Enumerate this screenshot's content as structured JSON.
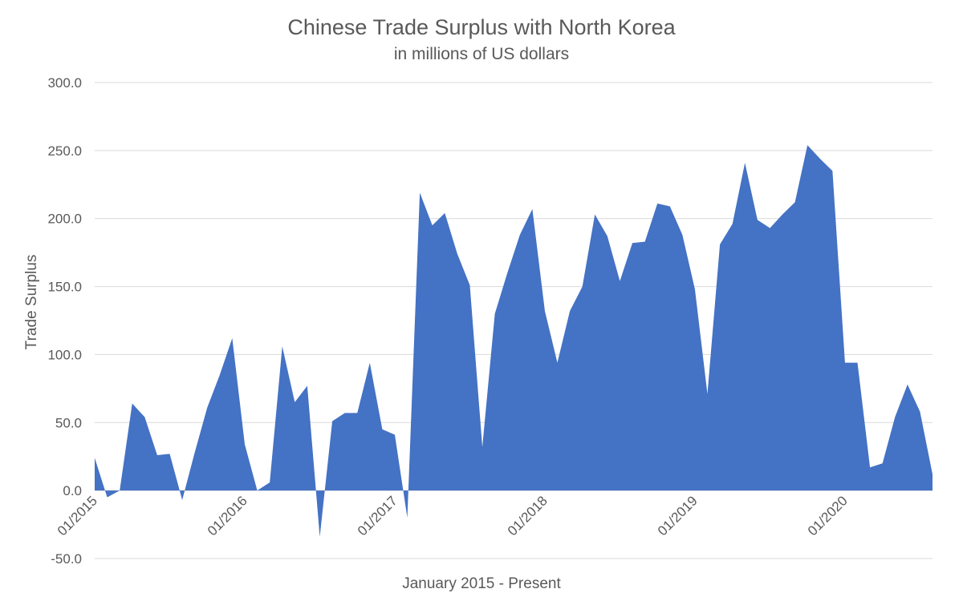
{
  "chart_data": {
    "type": "area",
    "title": "Chinese Trade Surplus with North Korea",
    "subtitle": "in millions of US dollars",
    "xlabel": "January 2015 - Present",
    "ylabel": "Trade Surplus",
    "ylim": [
      -50,
      300
    ],
    "y_ticks": [
      -50,
      0,
      50,
      100,
      150,
      200,
      250,
      300
    ],
    "y_tick_labels": [
      "-50.0",
      "0.0",
      "50.0",
      "100.0",
      "150.0",
      "200.0",
      "250.0",
      "300.0"
    ],
    "x_tick_labels": [
      "01/2015",
      "01/2016",
      "01/2017",
      "01/2018",
      "01/2019",
      "01/2020"
    ],
    "x_tick_months": [
      0,
      12,
      24,
      36,
      48,
      60
    ],
    "x_start": "01/2015",
    "grid": true,
    "legend": "none",
    "color": "#4472C4",
    "series": [
      {
        "values": [
          24,
          -5,
          0,
          64,
          54,
          26,
          27,
          -7,
          28,
          61,
          85,
          112,
          34,
          0,
          6,
          106,
          65,
          77,
          -34,
          51,
          57,
          57,
          94,
          45,
          41,
          -20,
          219,
          195,
          204,
          174,
          151,
          32,
          130,
          160,
          188,
          207,
          132,
          94,
          132,
          150,
          203,
          187,
          154,
          182,
          183,
          211,
          209,
          188,
          148,
          71,
          181,
          196,
          241,
          199,
          193,
          203,
          212,
          254,
          244,
          235,
          94,
          94,
          17,
          20,
          54,
          78,
          58,
          12
        ]
      }
    ]
  }
}
